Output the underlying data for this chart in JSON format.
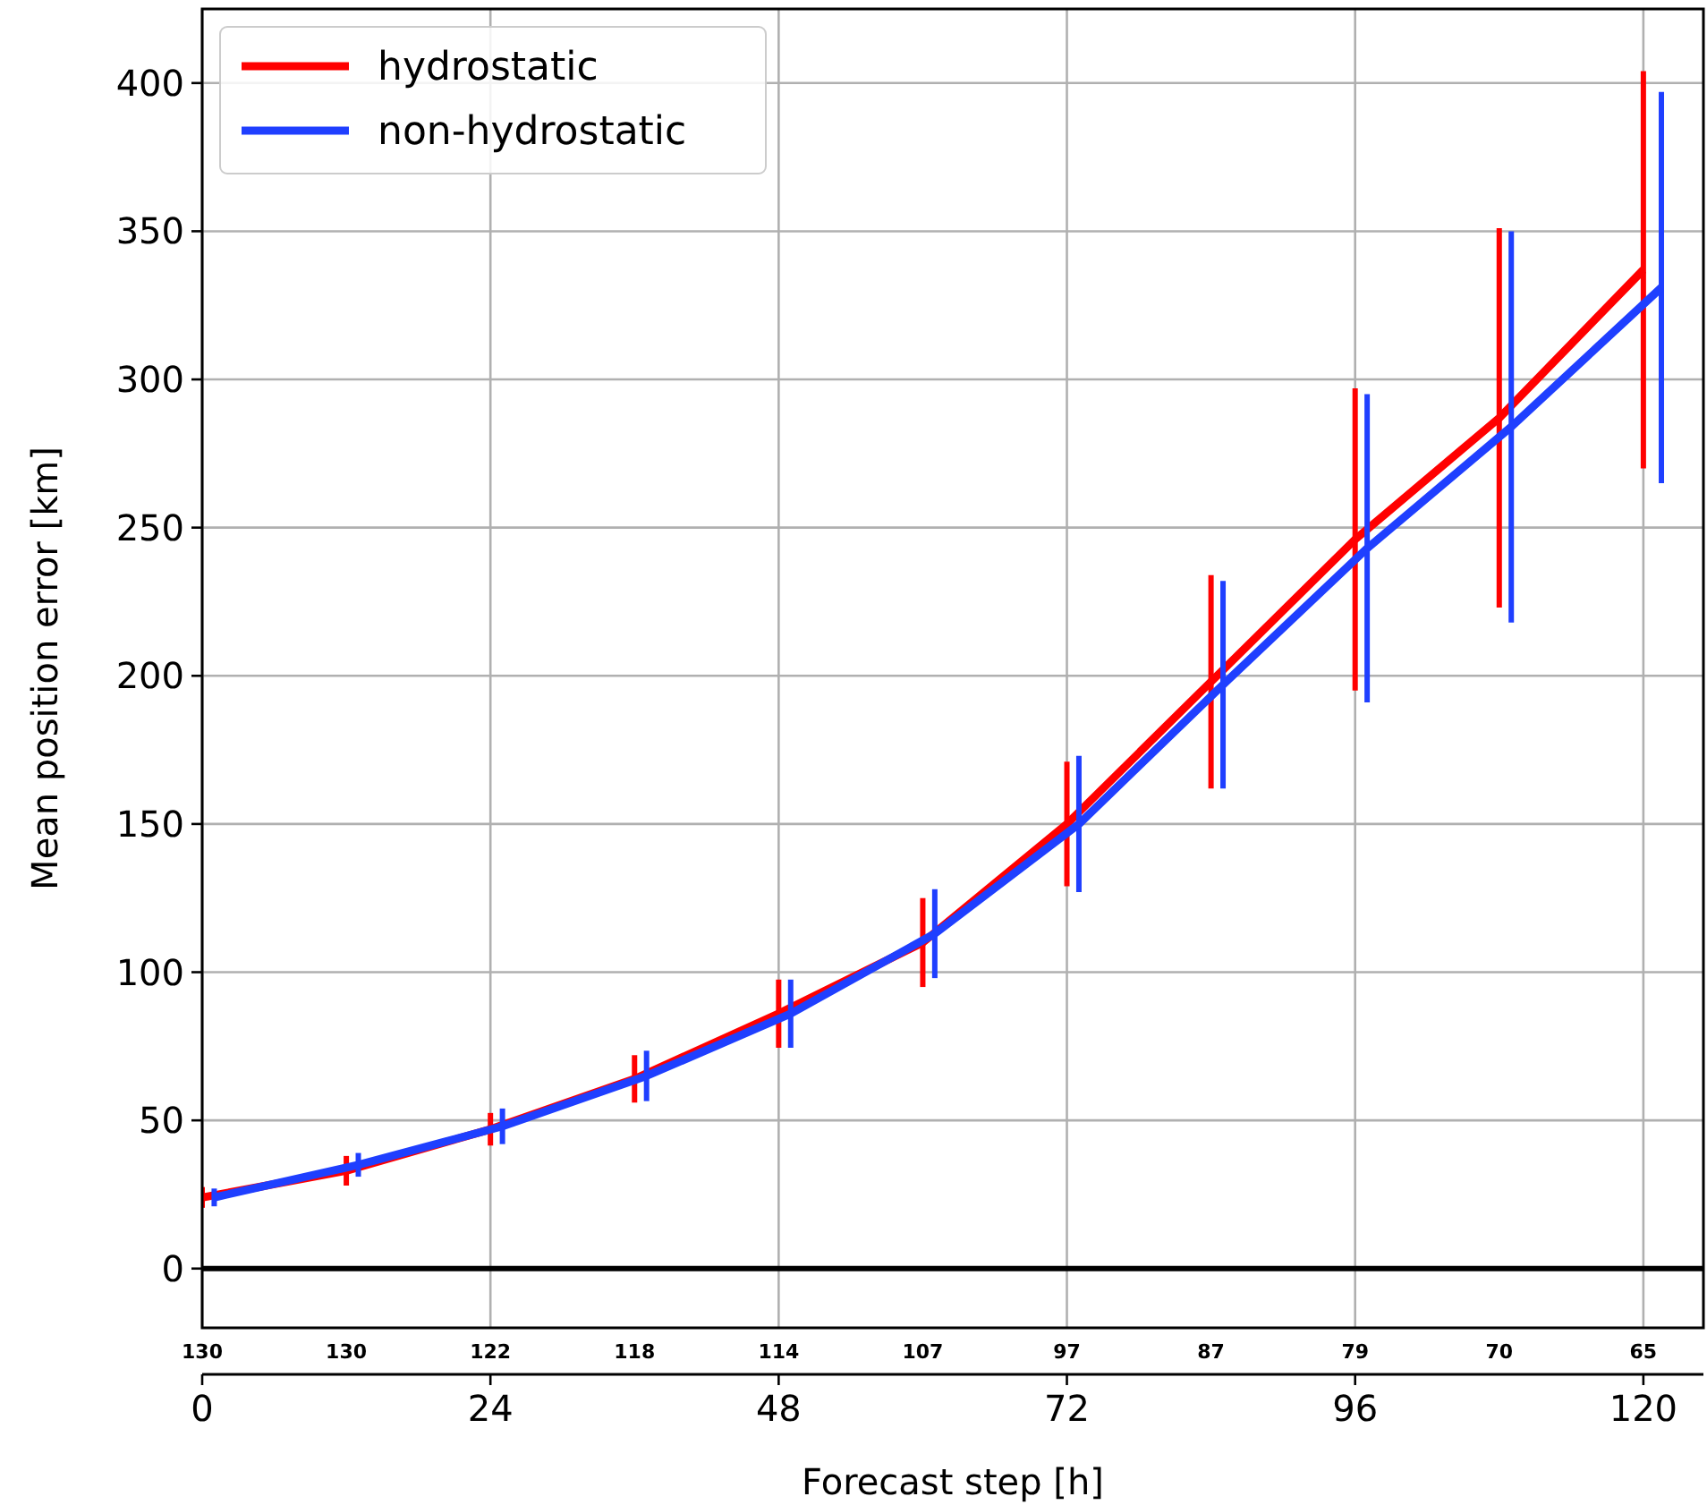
{
  "chart_data": {
    "type": "line",
    "xlabel": "Forecast step [h]",
    "ylabel": "Mean position error [km]",
    "xlim": [
      0,
      125
    ],
    "xticks": [
      0,
      24,
      48,
      72,
      96,
      120
    ],
    "ylim": [
      -20,
      425
    ],
    "yticks": [
      0,
      50,
      100,
      150,
      200,
      250,
      300,
      350,
      400
    ],
    "annotations": [
      "130",
      "130",
      "122",
      "118",
      "114",
      "107",
      "97",
      "87",
      "79",
      "70",
      "65"
    ],
    "grid": true,
    "legend": "top left",
    "marker": "none",
    "line_style": "solid",
    "ref_lines": [
      {
        "axis": "y",
        "value": 0,
        "color": "#000000"
      }
    ],
    "series": [
      {
        "name": "hydrostatic",
        "color": "#ff0000",
        "x": [
          0,
          12,
          24,
          36,
          48,
          60,
          72,
          84,
          96,
          108,
          120
        ],
        "values": [
          24,
          33,
          47,
          64,
          86,
          110,
          150,
          198,
          246,
          287,
          337
        ],
        "errors": [
          3.5,
          5,
          5.5,
          8,
          11.5,
          15,
          21,
          36,
          51,
          64,
          67
        ]
      },
      {
        "name": "non-hydrostatic",
        "color": "#1f3fff",
        "x": [
          1,
          13,
          25,
          37,
          49,
          61,
          73,
          85,
          97,
          109,
          121.5
        ],
        "values": [
          24,
          35,
          48,
          65,
          86,
          113,
          150,
          197,
          243,
          284,
          331
        ],
        "errors": [
          3,
          4,
          6,
          8.5,
          11.5,
          15,
          23,
          35,
          52,
          66,
          66
        ]
      }
    ]
  }
}
